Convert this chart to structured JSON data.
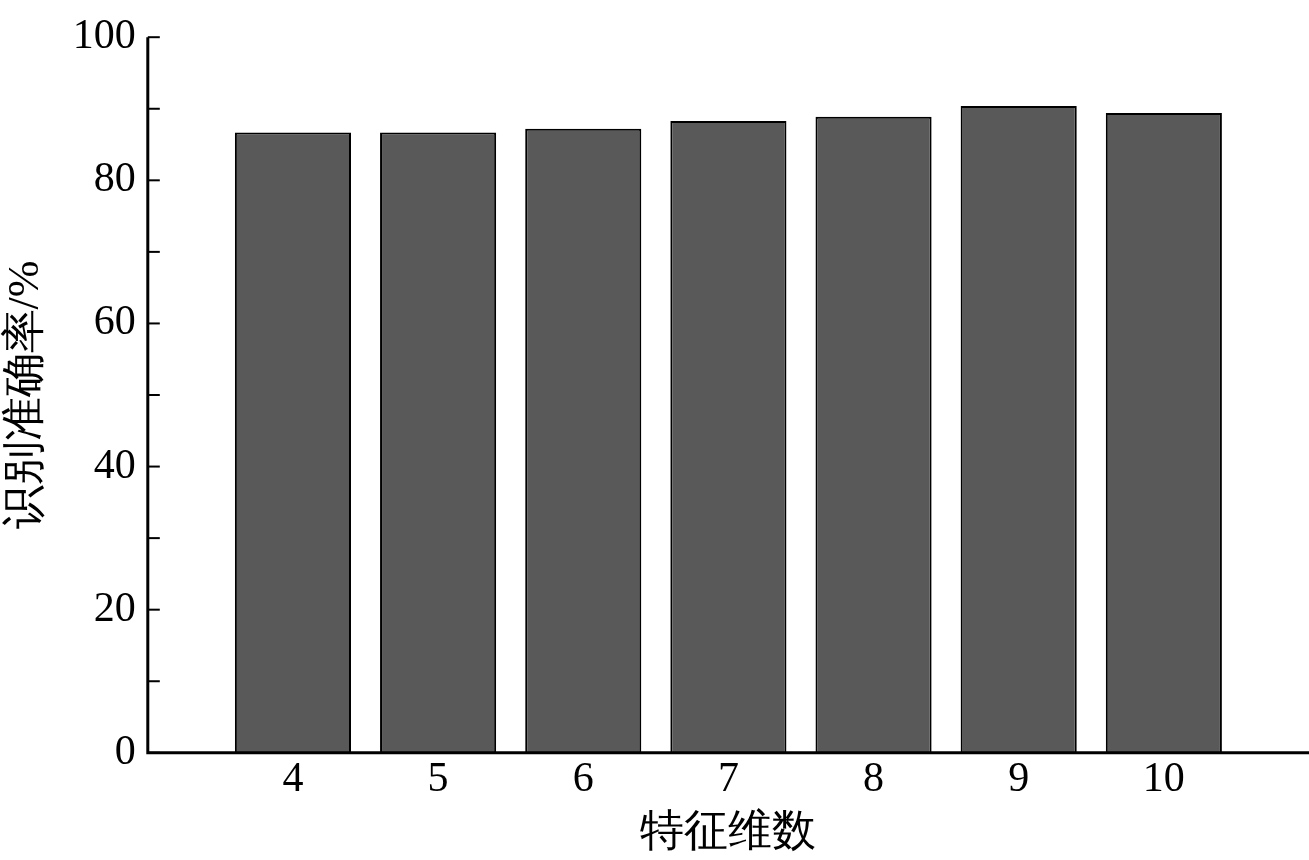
{
  "chart_data": {
    "type": "bar",
    "xlabel": "特征维数",
    "ylabel": "识别准确率/%",
    "x": [
      4,
      5,
      6,
      7,
      8,
      9,
      10
    ],
    "values": [
      86.7,
      86.7,
      87.2,
      88.3,
      88.9,
      90.4,
      89.4
    ],
    "color": "#595959",
    "xlim": [
      3,
      11
    ],
    "xticks": [
      4,
      5,
      6,
      7,
      8,
      9,
      10
    ],
    "ylim": [
      0,
      100
    ],
    "yticks": [
      0,
      {
        "value": 10,
        "label": null
      },
      20,
      {
        "value": 30,
        "label": null
      },
      40,
      {
        "value": 50,
        "label": null
      },
      60,
      {
        "value": 70,
        "label": null
      },
      80,
      {
        "value": 90,
        "label": null
      },
      100
    ],
    "grid": false,
    "legend": false
  }
}
